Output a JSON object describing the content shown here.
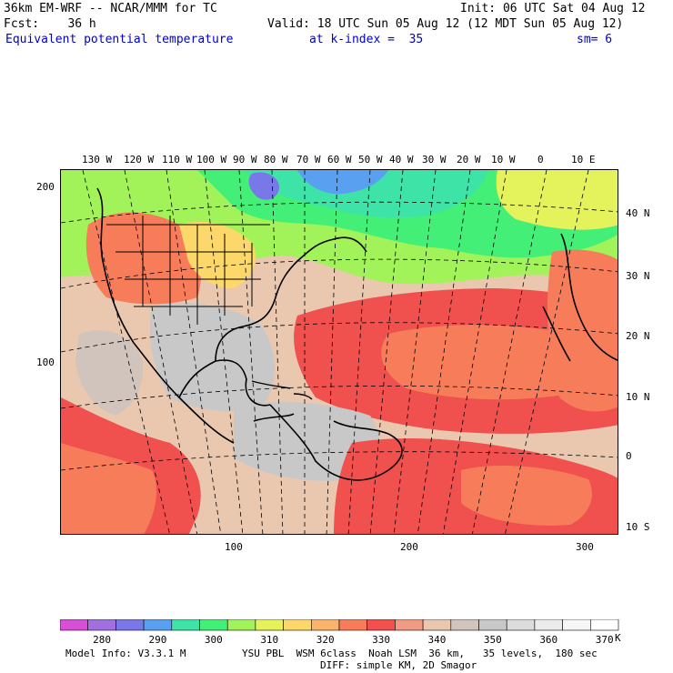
{
  "header": {
    "model_line": "36km EM-WRF -- NCAR/MMM for TC",
    "init_line": "Init: 06 UTC Sat 04 Aug 12",
    "fcst_line": "Fcst:    36 h",
    "valid_line": "Valid: 18 UTC Sun 05 Aug 12 (12 MDT Sun 05 Aug 12)",
    "field_name": "Equivalent potential temperature",
    "level_text": "at k-index =  35",
    "smooth_text": "sm= 6"
  },
  "map": {
    "top_lon_labels": [
      "130 W",
      "120 W",
      "110 W",
      "100 W",
      "90 W",
      "80 W",
      "70 W",
      "60 W",
      "50 W",
      "40 W",
      "30 W",
      "20 W",
      "10 W",
      "0",
      "10 E"
    ],
    "right_lat_labels": [
      "40 N",
      "30 N",
      "20 N",
      "10 N",
      "0",
      "10 S"
    ],
    "left_grid_labels": [
      "200",
      "100"
    ],
    "bottom_grid_labels": [
      "100",
      "200",
      "300"
    ]
  },
  "colorbar": {
    "levels": [
      "280",
      "290",
      "300",
      "310",
      "320",
      "330",
      "340",
      "350",
      "360",
      "370"
    ],
    "unit": "K",
    "colors": [
      "#d64fd6",
      "#a070e0",
      "#7878e8",
      "#5aa0f0",
      "#3ee3a8",
      "#44ef77",
      "#a2f25a",
      "#e4f25c",
      "#fbd869",
      "#f9b36a",
      "#f77d5a",
      "#f0504e",
      "#f19a84",
      "#eac8b0",
      "#d0c4bc",
      "#c8c8c8",
      "#dcdcdc",
      "#ebebeb",
      "#f6f6f6",
      "#ffffff"
    ]
  },
  "footer": {
    "model_info": "Model Info: V3.3.1 M",
    "physics": "YSU PBL  WSM 6class  Noah LSM  36 km,   35 levels,  180 sec",
    "diffusion": "DIFF: simple KM, 2D Smagor"
  }
}
